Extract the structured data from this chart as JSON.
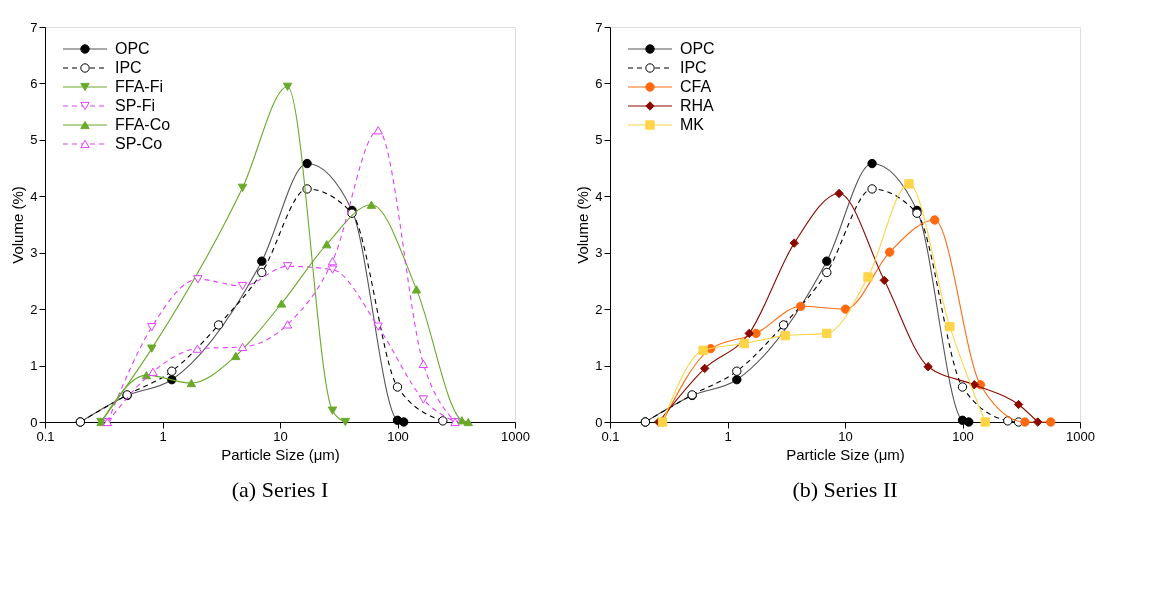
{
  "chart_data": [
    {
      "type": "line",
      "title": "(a) Series I",
      "xlabel": "Particle Size (μm)",
      "ylabel": "Volume (%)",
      "log": "x",
      "xlim": [
        0.1,
        1000
      ],
      "xticks": [
        0.1,
        1,
        10,
        100,
        1000
      ],
      "ylim": [
        0,
        7
      ],
      "yticks": [
        0,
        1,
        2,
        3,
        4,
        5,
        6,
        7
      ],
      "grid": false,
      "legend": "top left",
      "series": [
        {
          "name": "OPC",
          "color": "#000000",
          "marker": "circle",
          "line_style": "solid",
          "x": [
            0.2,
            0.5,
            1.2,
            7,
            17,
            41,
            100,
            113
          ],
          "values": [
            0,
            0.47,
            0.75,
            2.85,
            4.58,
            3.75,
            0.03,
            0
          ]
        },
        {
          "name": "IPC",
          "color": "#000000",
          "marker": "circle",
          "line_style": "dashed",
          "x": [
            0.2,
            0.5,
            1.2,
            3,
            7,
            17,
            41,
            100,
            243
          ],
          "values": [
            0,
            0.48,
            0.9,
            1.72,
            2.65,
            4.13,
            3.7,
            0.62,
            0.02
          ]
        },
        {
          "name": "FFA-Fi",
          "color": "#6aaa2a",
          "marker": "triangle-down",
          "line_style": "solid",
          "x": [
            0.3,
            0.81,
            4.8,
            11.6,
            28,
            36
          ],
          "values": [
            0,
            1.3,
            4.15,
            5.94,
            0.2,
            0
          ]
        },
        {
          "name": "SP-Fi",
          "color": "#e040fb",
          "marker": "triangle-down",
          "line_style": "dashed",
          "x": [
            0.34,
            0.81,
            2.0,
            4.8,
            11.6,
            28,
            68.5,
            166,
            309
          ],
          "values": [
            0,
            1.68,
            2.53,
            2.41,
            2.76,
            2.7,
            1.69,
            0.4,
            0
          ]
        },
        {
          "name": "FFA-Co",
          "color": "#6aaa2a",
          "marker": "triangle",
          "line_style": "solid",
          "x": [
            0.3,
            0.73,
            1.76,
            4.2,
            10.3,
            25,
            60,
            145,
            353,
            400
          ],
          "values": [
            0,
            0.83,
            0.69,
            1.17,
            2.1,
            3.15,
            3.85,
            2.35,
            0.03,
            0
          ]
        },
        {
          "name": "SP-Co",
          "color": "#e040fb",
          "marker": "triangle",
          "line_style": "dashed",
          "x": [
            0.34,
            0.83,
            1.98,
            4.8,
            11.6,
            28,
            68.5,
            166,
            309
          ],
          "values": [
            0,
            0.89,
            1.3,
            1.33,
            1.73,
            2.85,
            5.17,
            1.03,
            0
          ]
        }
      ]
    },
    {
      "type": "line",
      "title": "(b) Series II",
      "xlabel": "Particle Size (μm)",
      "ylabel": "Volume (%)",
      "log": "x",
      "xlim": [
        0.1,
        1000
      ],
      "xticks": [
        0.1,
        1,
        10,
        100,
        1000
      ],
      "ylim": [
        0,
        7
      ],
      "yticks": [
        0,
        1,
        2,
        3,
        4,
        5,
        6,
        7
      ],
      "grid": false,
      "legend": "top left",
      "series": [
        {
          "name": "OPC",
          "color": "#000000",
          "marker": "circle",
          "line_style": "solid",
          "x": [
            0.2,
            0.5,
            1.2,
            7,
            17,
            41,
            100,
            113
          ],
          "values": [
            0,
            0.47,
            0.75,
            2.85,
            4.58,
            3.75,
            0.03,
            0
          ]
        },
        {
          "name": "IPC",
          "color": "#000000",
          "marker": "circle",
          "line_style": "dashed",
          "x": [
            0.2,
            0.5,
            1.2,
            3,
            7,
            17,
            41,
            100,
            243,
            300
          ],
          "values": [
            0,
            0.48,
            0.9,
            1.72,
            2.65,
            4.13,
            3.7,
            0.62,
            0.02,
            0
          ]
        },
        {
          "name": "CFA",
          "color": "#ff6a10",
          "marker": "circle",
          "line_style": "solid",
          "x": [
            0.28,
            0.72,
            1.75,
            4.2,
            10.1,
            24,
            58,
            142,
            340,
            564
          ],
          "values": [
            0,
            1.3,
            1.57,
            2.05,
            2.0,
            3.01,
            3.58,
            0.66,
            0,
            0
          ]
        },
        {
          "name": "RHA",
          "color": "#8b0a00",
          "marker": "diamond",
          "line_style": "solid",
          "x": [
            0.26,
            0.64,
            1.53,
            3.7,
            8.9,
            21.6,
            51,
            126,
            300,
            437
          ],
          "values": [
            0,
            0.95,
            1.57,
            3.17,
            4.05,
            2.51,
            0.98,
            0.66,
            0.31,
            0
          ]
        },
        {
          "name": "MK",
          "color": "#ffd447",
          "marker": "square",
          "line_style": "solid",
          "x": [
            0.28,
            0.62,
            1.39,
            3.1,
            7.0,
            15.7,
            35,
            78,
            156
          ],
          "values": [
            0,
            1.27,
            1.39,
            1.53,
            1.57,
            2.57,
            4.22,
            1.69,
            0
          ]
        }
      ]
    }
  ]
}
